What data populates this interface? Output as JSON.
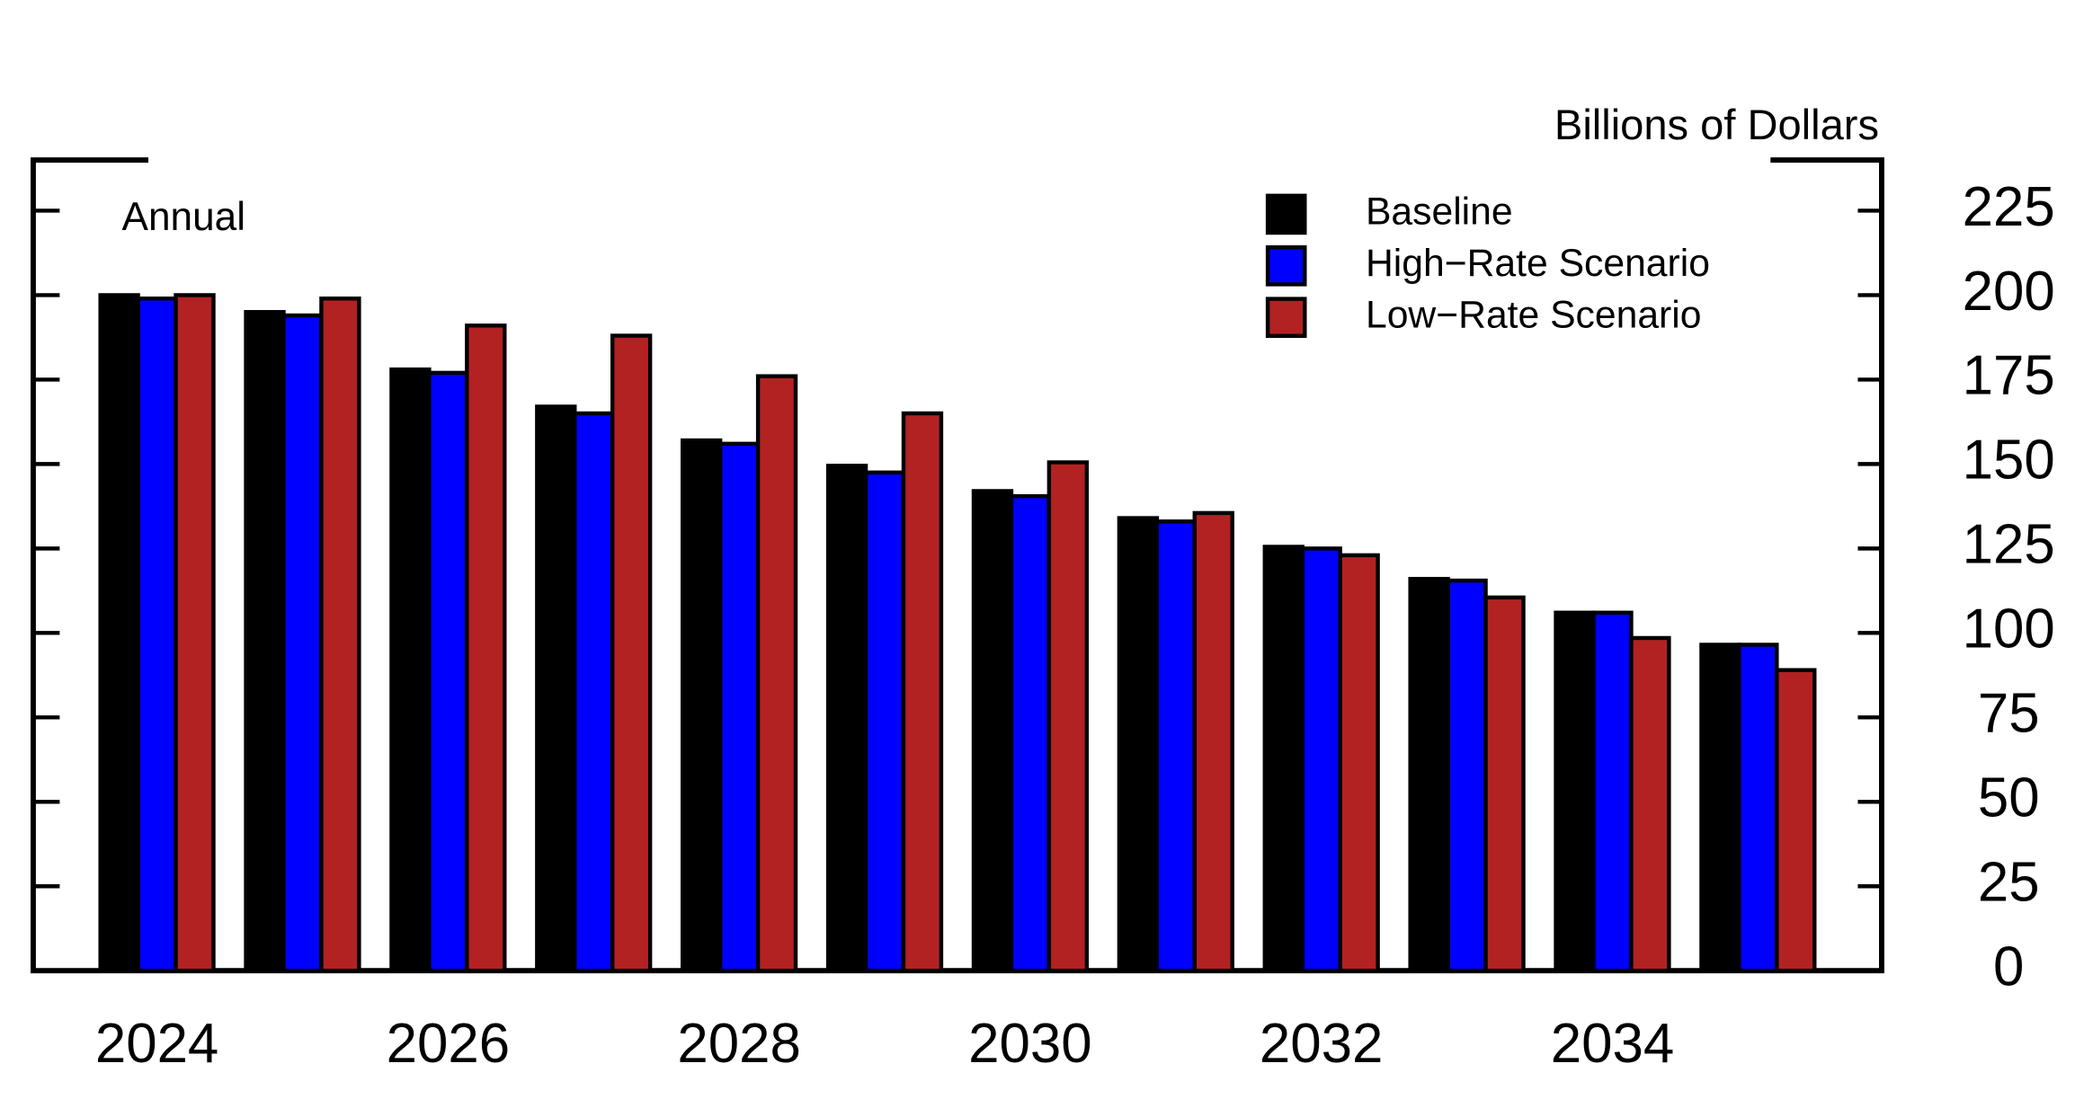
{
  "chart_data": {
    "type": "bar",
    "unit_label": "Billions of Dollars",
    "annotation": "Annual",
    "categories": [
      "2024",
      null,
      "2026",
      null,
      "2028",
      null,
      "2030",
      null,
      "2032",
      null,
      "2034",
      null
    ],
    "series": [
      {
        "name": "Baseline",
        "color": "#000000",
        "values": [
          200,
          195,
          178,
          167,
          157,
          149.5,
          142,
          134,
          125.5,
          116,
          106,
          96.5
        ]
      },
      {
        "name": "High−Rate Scenario",
        "color": "#0000ff",
        "values": [
          199,
          194,
          177,
          165,
          156,
          147.5,
          140.5,
          133,
          125,
          115.5,
          106,
          96.5
        ]
      },
      {
        "name": "Low−Rate Scenario",
        "color": "#b22222",
        "values": [
          200,
          199,
          191,
          188,
          176,
          165,
          150.5,
          135.5,
          123,
          110.5,
          98.5,
          89
        ]
      }
    ],
    "ylim": [
      0,
      240
    ],
    "yticks": [
      0,
      25,
      50,
      75,
      100,
      125,
      150,
      175,
      200,
      225
    ],
    "legend": "top-right"
  }
}
